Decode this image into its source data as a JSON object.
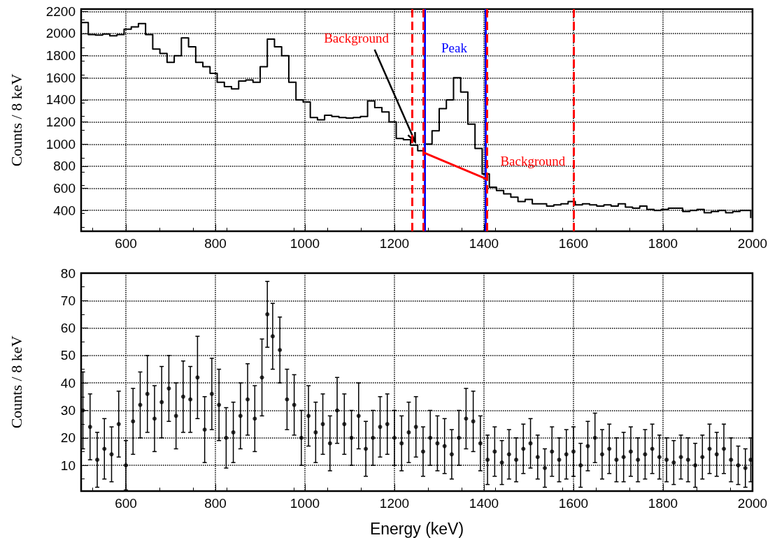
{
  "chart_data": [
    {
      "type": "step",
      "ylabel": "Counts / 8 keV",
      "xlim": [
        500,
        2000
      ],
      "ylim": [
        212,
        2221
      ],
      "xticks": [
        600,
        800,
        1000,
        1200,
        1400,
        1600,
        1800,
        2000
      ],
      "yticks": [
        400,
        600,
        800,
        1000,
        1200,
        1400,
        1600,
        1800,
        2000,
        2200
      ],
      "grid": true,
      "series": [
        {
          "color": "#000000",
          "x": [
            500,
            516,
            532,
            548,
            564,
            580,
            596,
            612,
            628,
            644,
            660,
            676,
            692,
            708,
            724,
            740,
            756,
            772,
            788,
            804,
            820,
            836,
            852,
            868,
            884,
            900,
            916,
            932,
            948,
            964,
            980,
            996,
            1012,
            1028,
            1044,
            1060,
            1076,
            1092,
            1108,
            1124,
            1140,
            1156,
            1172,
            1188,
            1204,
            1220,
            1236,
            1252,
            1268,
            1284,
            1300,
            1316,
            1332,
            1348,
            1364,
            1380,
            1396,
            1412,
            1428,
            1444,
            1460,
            1476,
            1492,
            1508,
            1524,
            1540,
            1556,
            1572,
            1588,
            1604,
            1620,
            1636,
            1652,
            1668,
            1684,
            1700,
            1716,
            1732,
            1748,
            1764,
            1780,
            1796,
            1812,
            1828,
            1844,
            1860,
            1876,
            1892,
            1908,
            1924,
            1940,
            1956,
            1972,
            1988,
            1996
          ],
          "values": [
            2100,
            1990,
            1985,
            1995,
            1980,
            1990,
            2040,
            2060,
            2090,
            1990,
            1860,
            1820,
            1740,
            1800,
            1960,
            1880,
            1740,
            1700,
            1640,
            1560,
            1520,
            1500,
            1570,
            1580,
            1560,
            1700,
            1950,
            1880,
            1800,
            1560,
            1400,
            1380,
            1240,
            1220,
            1260,
            1250,
            1240,
            1235,
            1240,
            1250,
            1390,
            1330,
            1290,
            1200,
            1050,
            1040,
            990,
            940,
            1000,
            1120,
            1320,
            1400,
            1600,
            1470,
            1180,
            960,
            730,
            610,
            580,
            550,
            520,
            480,
            500,
            460,
            460,
            440,
            450,
            460,
            480,
            450,
            460,
            450,
            440,
            450,
            440,
            460,
            430,
            420,
            440,
            410,
            400,
            410,
            420,
            420,
            390,
            400,
            410,
            380,
            390,
            400,
            380,
            390,
            400,
            400,
            330
          ]
        },
        {
          "type": "line",
          "color": "#ff0000",
          "x": [
            1266,
            1406
          ],
          "values": [
            922,
            684
          ]
        }
      ],
      "ref_lines": [
        {
          "axis": "x",
          "value": 1268,
          "color": "#0000ff",
          "line_style": "solid",
          "label": "Peak"
        },
        {
          "axis": "x",
          "value": 1404,
          "color": "#0000ff",
          "line_style": "solid"
        },
        {
          "axis": "x",
          "value": 1240,
          "color": "#ff0000",
          "line_style": "dashed",
          "label": "Background"
        },
        {
          "axis": "x",
          "value": 1264,
          "color": "#ff0000",
          "line_style": "dashed"
        },
        {
          "axis": "x",
          "value": 1406,
          "color": "#ff0000",
          "line_style": "dashed",
          "label": "Background"
        },
        {
          "axis": "x",
          "value": 1600,
          "color": "#ff0000",
          "line_style": "dashed"
        }
      ]
    },
    {
      "type": "scatter",
      "xlabel": "Energy (keV)",
      "ylabel": "Counts / 8 keV",
      "xlim": [
        500,
        2000
      ],
      "ylim": [
        0.6,
        80
      ],
      "xticks": [
        600,
        800,
        1000,
        1200,
        1400,
        1600,
        1800,
        2000
      ],
      "yticks": [
        10,
        20,
        30,
        40,
        50,
        60,
        70,
        80
      ],
      "grid": true,
      "marker": "circle",
      "x": [
        504,
        520,
        536,
        552,
        568,
        584,
        600,
        616,
        632,
        648,
        664,
        680,
        696,
        712,
        728,
        744,
        760,
        776,
        792,
        808,
        824,
        840,
        856,
        872,
        888,
        904,
        916,
        928,
        944,
        960,
        976,
        992,
        1008,
        1024,
        1040,
        1056,
        1072,
        1088,
        1104,
        1120,
        1136,
        1152,
        1168,
        1184,
        1200,
        1216,
        1232,
        1248,
        1264,
        1280,
        1296,
        1312,
        1328,
        1344,
        1360,
        1376,
        1392,
        1408,
        1424,
        1440,
        1456,
        1472,
        1488,
        1504,
        1520,
        1536,
        1552,
        1568,
        1584,
        1600,
        1616,
        1632,
        1648,
        1664,
        1680,
        1696,
        1712,
        1728,
        1744,
        1760,
        1776,
        1792,
        1808,
        1824,
        1840,
        1856,
        1872,
        1888,
        1904,
        1920,
        1936,
        1952,
        1968,
        1984,
        1996
      ],
      "series": [
        {
          "color": "#000000",
          "values": [
            30,
            24,
            12,
            16,
            14,
            25,
            10,
            26,
            32,
            36,
            27,
            33,
            38,
            28,
            35,
            34,
            42,
            23,
            36,
            32,
            20,
            22,
            28,
            34,
            27,
            42,
            65,
            57,
            52,
            34,
            32,
            20,
            28,
            22,
            25,
            18,
            30,
            25,
            20,
            28,
            16,
            20,
            24,
            25,
            20,
            18,
            22,
            24,
            15,
            20,
            18,
            17,
            14,
            20,
            27,
            26,
            18,
            12,
            15,
            11,
            14,
            12,
            16,
            18,
            13,
            9,
            15,
            12,
            14,
            15,
            10,
            17,
            20,
            14,
            16,
            12,
            13,
            15,
            12,
            14,
            16,
            13,
            12,
            11,
            13,
            12,
            10,
            13,
            16,
            14,
            16,
            12,
            10,
            9,
            12
          ],
          "errors": [
            14,
            12,
            10,
            11,
            10,
            12,
            9,
            12,
            12,
            14,
            12,
            13,
            12,
            12,
            13,
            12,
            15,
            12,
            13,
            13,
            11,
            11,
            12,
            13,
            12,
            14,
            12,
            12,
            12,
            11,
            11,
            10,
            11,
            11,
            11,
            10,
            12,
            11,
            10,
            12,
            10,
            10,
            11,
            11,
            10,
            10,
            11,
            11,
            9,
            10,
            10,
            10,
            9,
            10,
            11,
            11,
            10,
            9,
            9,
            8,
            9,
            8,
            9,
            9,
            8,
            7,
            9,
            8,
            9,
            9,
            8,
            9,
            9,
            9,
            9,
            8,
            9,
            9,
            8,
            9,
            9,
            8,
            8,
            8,
            8,
            8,
            8,
            8,
            9,
            8,
            9,
            8,
            7,
            7,
            8
          ]
        }
      ]
    }
  ]
}
